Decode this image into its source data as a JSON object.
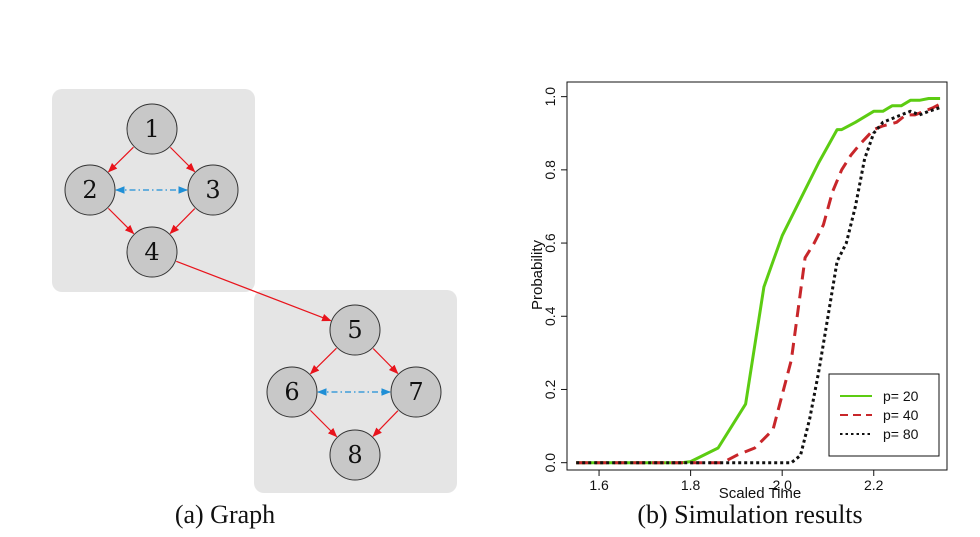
{
  "graph": {
    "caption": "(a) Graph",
    "nodes": [
      {
        "id": "1",
        "label": "1"
      },
      {
        "id": "2",
        "label": "2"
      },
      {
        "id": "3",
        "label": "3"
      },
      {
        "id": "4",
        "label": "4"
      },
      {
        "id": "5",
        "label": "5"
      },
      {
        "id": "6",
        "label": "6"
      },
      {
        "id": "7",
        "label": "7"
      },
      {
        "id": "8",
        "label": "8"
      }
    ],
    "edges": [
      {
        "from": "1",
        "to": "2",
        "type": "directed",
        "color": "#e8141c"
      },
      {
        "from": "1",
        "to": "3",
        "type": "directed",
        "color": "#e8141c"
      },
      {
        "from": "2",
        "to": "4",
        "type": "directed",
        "color": "#e8141c"
      },
      {
        "from": "3",
        "to": "4",
        "type": "directed",
        "color": "#e8141c"
      },
      {
        "from": "2",
        "to": "3",
        "type": "bidirectional-dashed",
        "color": "#1f8fd6"
      },
      {
        "from": "4",
        "to": "5",
        "type": "directed",
        "color": "#e8141c"
      },
      {
        "from": "5",
        "to": "6",
        "type": "directed",
        "color": "#e8141c"
      },
      {
        "from": "5",
        "to": "7",
        "type": "directed",
        "color": "#e8141c"
      },
      {
        "from": "6",
        "to": "8",
        "type": "directed",
        "color": "#e8141c"
      },
      {
        "from": "7",
        "to": "8",
        "type": "directed",
        "color": "#e8141c"
      },
      {
        "from": "6",
        "to": "7",
        "type": "bidirectional-dashed",
        "color": "#1f8fd6"
      }
    ],
    "colors": {
      "panel": "#e5e5e5",
      "node_fill": "#c8c8c8",
      "node_stroke": "#333333"
    }
  },
  "simulation": {
    "caption": "(b) Simulation results"
  },
  "chart_data": {
    "type": "line",
    "title": "",
    "xlabel": "Scaled Time",
    "ylabel": "Probability",
    "xlim": [
      1.53,
      2.36
    ],
    "ylim": [
      -0.02,
      1.04
    ],
    "xticks": [
      1.6,
      1.8,
      2.0,
      2.2
    ],
    "xtick_labels": [
      "1.6",
      "1.8",
      "2.0",
      "2.2"
    ],
    "yticks": [
      0.0,
      0.2,
      0.4,
      0.6,
      0.8,
      1.0
    ],
    "ytick_labels": [
      "0.0",
      "0.2",
      "0.4",
      "0.6",
      "0.8",
      "1.0"
    ],
    "grid": false,
    "legend_position": "bottom-right",
    "series": [
      {
        "name": "p= 20",
        "color": "#5ccc12",
        "dash": "solid",
        "x": [
          1.55,
          1.78,
          1.8,
          1.86,
          1.92,
          1.96,
          1.98,
          2.0,
          2.04,
          2.08,
          2.12,
          2.13,
          2.16,
          2.2,
          2.22,
          2.24,
          2.26,
          2.28,
          2.3,
          2.32,
          2.345
        ],
        "y": [
          0.0,
          0.0,
          0.003,
          0.04,
          0.16,
          0.48,
          0.55,
          0.62,
          0.72,
          0.82,
          0.91,
          0.91,
          0.93,
          0.96,
          0.96,
          0.975,
          0.975,
          0.99,
          0.99,
          0.995,
          0.995
        ]
      },
      {
        "name": "p= 40",
        "color": "#c8262a",
        "dash": "dashed",
        "x": [
          1.55,
          1.87,
          1.9,
          1.94,
          1.98,
          2.02,
          2.05,
          2.07,
          2.09,
          2.11,
          2.13,
          2.15,
          2.17,
          2.2,
          2.22,
          2.25,
          2.27,
          2.29,
          2.31,
          2.33,
          2.345
        ],
        "y": [
          0.0,
          0.0,
          0.02,
          0.04,
          0.09,
          0.28,
          0.56,
          0.6,
          0.65,
          0.74,
          0.8,
          0.84,
          0.87,
          0.91,
          0.92,
          0.93,
          0.95,
          0.95,
          0.96,
          0.97,
          0.98
        ]
      },
      {
        "name": "p= 80",
        "color": "#111111",
        "dash": "dotted",
        "x": [
          1.55,
          2.02,
          2.04,
          2.06,
          2.08,
          2.1,
          2.12,
          2.14,
          2.16,
          2.18,
          2.2,
          2.22,
          2.24,
          2.26,
          2.28,
          2.3,
          2.32,
          2.345
        ],
        "y": [
          0.0,
          0.0,
          0.02,
          0.12,
          0.25,
          0.4,
          0.55,
          0.6,
          0.7,
          0.83,
          0.9,
          0.93,
          0.94,
          0.95,
          0.96,
          0.95,
          0.96,
          0.97
        ]
      }
    ]
  }
}
